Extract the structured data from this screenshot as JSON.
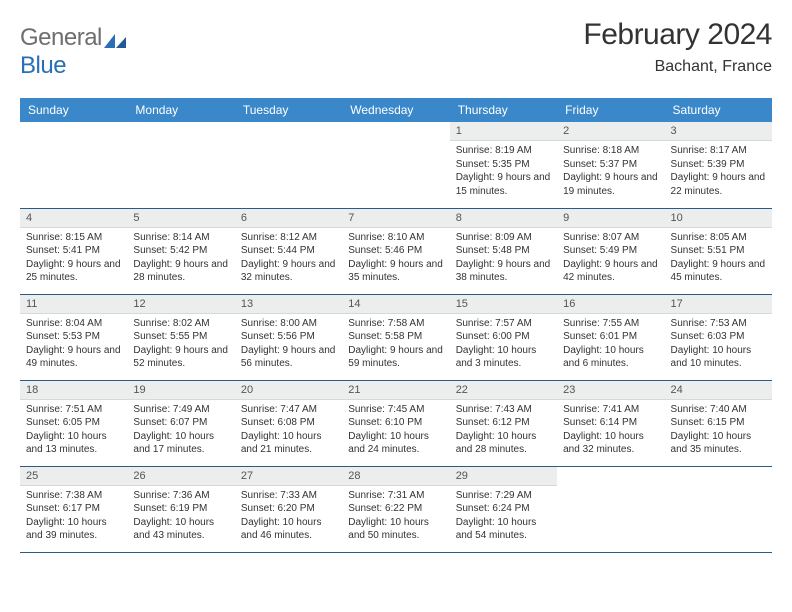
{
  "brand": {
    "part1": "General",
    "part2": "Blue"
  },
  "title": "February 2024",
  "location": "Bachant, France",
  "colors": {
    "header_bg": "#3a88c9",
    "header_text": "#ffffff",
    "rule": "#2a5a88",
    "daynum_bg": "#eceded",
    "text": "#333333"
  },
  "weekdays": [
    "Sunday",
    "Monday",
    "Tuesday",
    "Wednesday",
    "Thursday",
    "Friday",
    "Saturday"
  ],
  "weeks": [
    [
      null,
      null,
      null,
      null,
      {
        "n": "1",
        "sr": "8:19 AM",
        "ss": "5:35 PM",
        "dl": "9 hours and 15 minutes."
      },
      {
        "n": "2",
        "sr": "8:18 AM",
        "ss": "5:37 PM",
        "dl": "9 hours and 19 minutes."
      },
      {
        "n": "3",
        "sr": "8:17 AM",
        "ss": "5:39 PM",
        "dl": "9 hours and 22 minutes."
      }
    ],
    [
      {
        "n": "4",
        "sr": "8:15 AM",
        "ss": "5:41 PM",
        "dl": "9 hours and 25 minutes."
      },
      {
        "n": "5",
        "sr": "8:14 AM",
        "ss": "5:42 PM",
        "dl": "9 hours and 28 minutes."
      },
      {
        "n": "6",
        "sr": "8:12 AM",
        "ss": "5:44 PM",
        "dl": "9 hours and 32 minutes."
      },
      {
        "n": "7",
        "sr": "8:10 AM",
        "ss": "5:46 PM",
        "dl": "9 hours and 35 minutes."
      },
      {
        "n": "8",
        "sr": "8:09 AM",
        "ss": "5:48 PM",
        "dl": "9 hours and 38 minutes."
      },
      {
        "n": "9",
        "sr": "8:07 AM",
        "ss": "5:49 PM",
        "dl": "9 hours and 42 minutes."
      },
      {
        "n": "10",
        "sr": "8:05 AM",
        "ss": "5:51 PM",
        "dl": "9 hours and 45 minutes."
      }
    ],
    [
      {
        "n": "11",
        "sr": "8:04 AM",
        "ss": "5:53 PM",
        "dl": "9 hours and 49 minutes."
      },
      {
        "n": "12",
        "sr": "8:02 AM",
        "ss": "5:55 PM",
        "dl": "9 hours and 52 minutes."
      },
      {
        "n": "13",
        "sr": "8:00 AM",
        "ss": "5:56 PM",
        "dl": "9 hours and 56 minutes."
      },
      {
        "n": "14",
        "sr": "7:58 AM",
        "ss": "5:58 PM",
        "dl": "9 hours and 59 minutes."
      },
      {
        "n": "15",
        "sr": "7:57 AM",
        "ss": "6:00 PM",
        "dl": "10 hours and 3 minutes."
      },
      {
        "n": "16",
        "sr": "7:55 AM",
        "ss": "6:01 PM",
        "dl": "10 hours and 6 minutes."
      },
      {
        "n": "17",
        "sr": "7:53 AM",
        "ss": "6:03 PM",
        "dl": "10 hours and 10 minutes."
      }
    ],
    [
      {
        "n": "18",
        "sr": "7:51 AM",
        "ss": "6:05 PM",
        "dl": "10 hours and 13 minutes."
      },
      {
        "n": "19",
        "sr": "7:49 AM",
        "ss": "6:07 PM",
        "dl": "10 hours and 17 minutes."
      },
      {
        "n": "20",
        "sr": "7:47 AM",
        "ss": "6:08 PM",
        "dl": "10 hours and 21 minutes."
      },
      {
        "n": "21",
        "sr": "7:45 AM",
        "ss": "6:10 PM",
        "dl": "10 hours and 24 minutes."
      },
      {
        "n": "22",
        "sr": "7:43 AM",
        "ss": "6:12 PM",
        "dl": "10 hours and 28 minutes."
      },
      {
        "n": "23",
        "sr": "7:41 AM",
        "ss": "6:14 PM",
        "dl": "10 hours and 32 minutes."
      },
      {
        "n": "24",
        "sr": "7:40 AM",
        "ss": "6:15 PM",
        "dl": "10 hours and 35 minutes."
      }
    ],
    [
      {
        "n": "25",
        "sr": "7:38 AM",
        "ss": "6:17 PM",
        "dl": "10 hours and 39 minutes."
      },
      {
        "n": "26",
        "sr": "7:36 AM",
        "ss": "6:19 PM",
        "dl": "10 hours and 43 minutes."
      },
      {
        "n": "27",
        "sr": "7:33 AM",
        "ss": "6:20 PM",
        "dl": "10 hours and 46 minutes."
      },
      {
        "n": "28",
        "sr": "7:31 AM",
        "ss": "6:22 PM",
        "dl": "10 hours and 50 minutes."
      },
      {
        "n": "29",
        "sr": "7:29 AM",
        "ss": "6:24 PM",
        "dl": "10 hours and 54 minutes."
      },
      null,
      null
    ]
  ],
  "labels": {
    "sunrise": "Sunrise:",
    "sunset": "Sunset:",
    "daylight": "Daylight:"
  }
}
